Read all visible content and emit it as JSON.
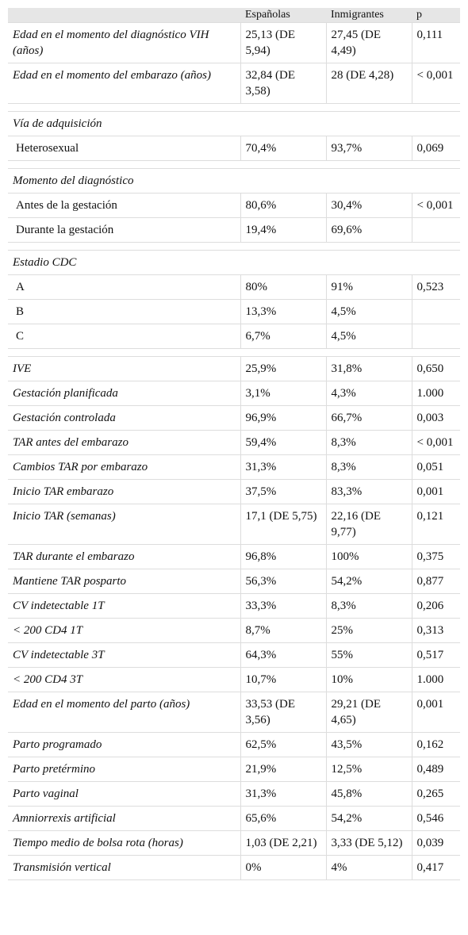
{
  "table": {
    "header": [
      "Españolas",
      "Inmigrantes",
      "p"
    ],
    "groups": [
      {
        "rows": [
          {
            "label": "Edad en el momento del diagnóstico VIH (años)",
            "cells": [
              "25,13 (DE 5,94)",
              "27,45 (DE 4,49)",
              "0,111"
            ]
          },
          {
            "label": "Edad en el momento del embarazo (años)",
            "cells": [
              "32,84 (DE 3,58)",
              "28 (DE 4,28)",
              "< 0,001"
            ]
          }
        ]
      },
      {
        "title": "Vía de adquisición",
        "rows": [
          {
            "label": "Heterosexual",
            "cells": [
              "70,4%",
              "93,7%",
              "0,069"
            ]
          }
        ]
      },
      {
        "title": "Momento del diagnóstico",
        "rows": [
          {
            "label": "Antes de la gestación",
            "cells": [
              "80,6%",
              "30,4%",
              "< 0,001"
            ]
          },
          {
            "label": "Durante la gestación",
            "cells": [
              "19,4%",
              "69,6%",
              null
            ]
          }
        ]
      },
      {
        "title": "Estadio CDC",
        "rows": [
          {
            "label": "A",
            "cells": [
              "80%",
              "91%",
              "0,523"
            ]
          },
          {
            "label": "B",
            "cells": [
              "13,3%",
              "4,5%",
              null
            ]
          },
          {
            "label": "C",
            "cells": [
              "6,7%",
              "4,5%",
              null
            ]
          }
        ]
      },
      {
        "rows": [
          {
            "label": "IVE",
            "cells": [
              "25,9%",
              "31,8%",
              "0,650"
            ]
          },
          {
            "label": "Gestación planificada",
            "cells": [
              "3,1%",
              "4,3%",
              "1.000"
            ]
          },
          {
            "label": "Gestación controlada",
            "cells": [
              "96,9%",
              "66,7%",
              "0,003"
            ]
          },
          {
            "label": "TAR antes del embarazo",
            "cells": [
              "59,4%",
              "8,3%",
              "< 0,001"
            ]
          },
          {
            "label": "Cambios TAR por embarazo",
            "cells": [
              "31,3%",
              "8,3%",
              "0,051"
            ]
          },
          {
            "label": "Inicio TAR embarazo",
            "cells": [
              "37,5%",
              "83,3%",
              "0,001"
            ]
          },
          {
            "label": "Inicio TAR (semanas)",
            "cells": [
              "17,1 (DE 5,75)",
              "22,16 (DE 9,77)",
              "0,121"
            ]
          },
          {
            "label": "TAR durante el embarazo",
            "cells": [
              "96,8%",
              "100%",
              "0,375"
            ]
          },
          {
            "label": "Mantiene TAR posparto",
            "cells": [
              "56,3%",
              "54,2%",
              "0,877"
            ]
          },
          {
            "label": "CV indetectable 1T",
            "cells": [
              "33,3%",
              "8,3%",
              "0,206"
            ]
          },
          {
            "label": "< 200 CD4 1T",
            "cells": [
              "8,7%",
              "25%",
              "0,313"
            ]
          },
          {
            "label": "CV indetectable 3T",
            "cells": [
              "64,3%",
              "55%",
              "0,517"
            ]
          },
          {
            "label": "< 200 CD4 3T",
            "cells": [
              "10,7%",
              "10%",
              "1.000"
            ]
          },
          {
            "label": "Edad en el momento del parto (años)",
            "cells": [
              "33,53 (DE 3,56)",
              "29,21 (DE 4,65)",
              "0,001"
            ]
          },
          {
            "label": "Parto programado",
            "cells": [
              "62,5%",
              "43,5%",
              "0,162"
            ]
          },
          {
            "label": "Parto pretérmino",
            "cells": [
              "21,9%",
              "12,5%",
              "0,489"
            ]
          },
          {
            "label": "Parto vaginal",
            "cells": [
              "31,3%",
              "45,8%",
              "0,265"
            ]
          },
          {
            "label": "Amniorrexis artificial",
            "cells": [
              "65,6%",
              "54,2%",
              "0,546"
            ]
          },
          {
            "label": "Tiempo medio de bolsa rota (horas)",
            "cells": [
              "1,03 (DE 2,21)",
              "3,33 (DE 5,12)",
              "0,039"
            ]
          },
          {
            "label": "Transmisión vertical",
            "cells": [
              "0%",
              "4%",
              "0,417"
            ]
          }
        ]
      }
    ]
  }
}
